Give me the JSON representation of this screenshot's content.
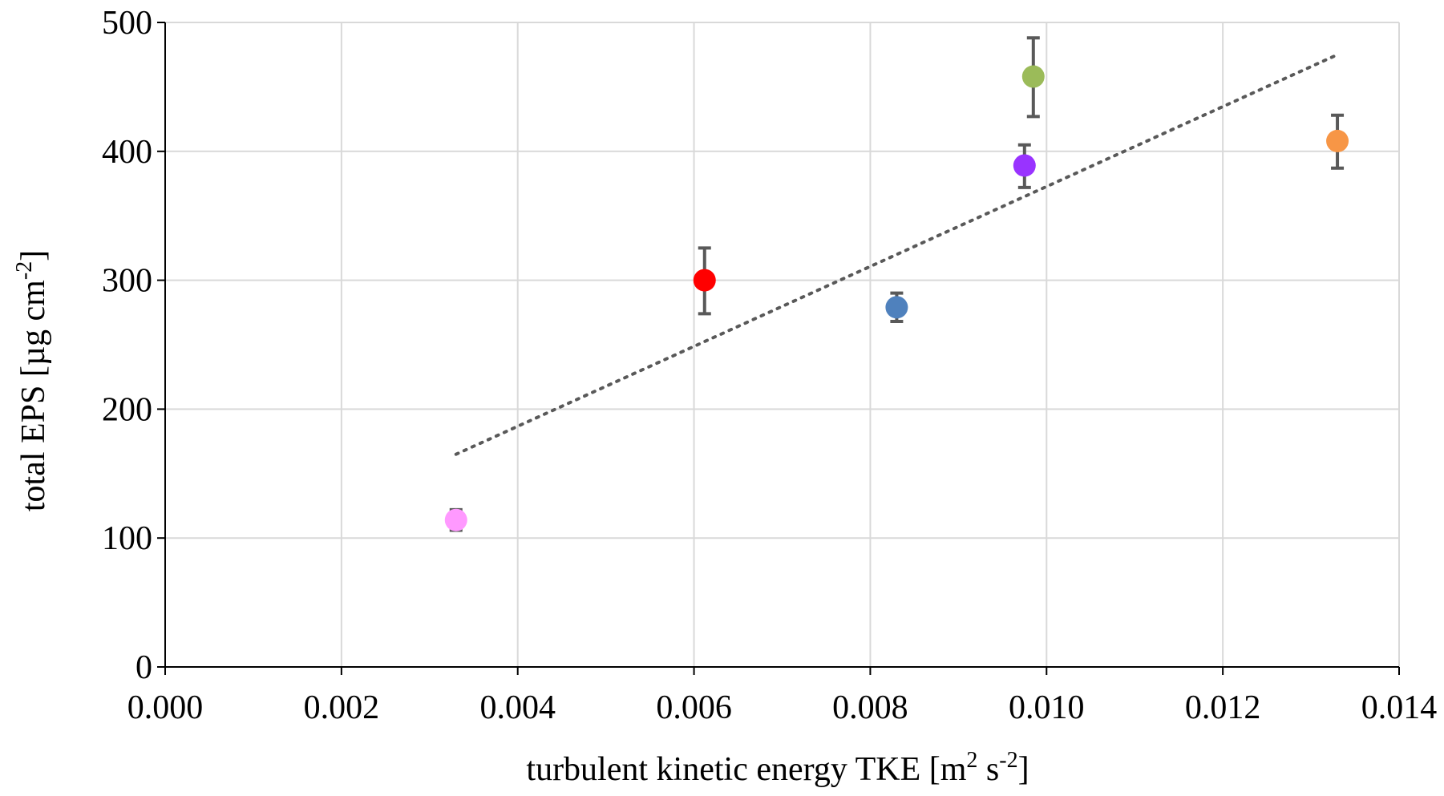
{
  "chart_data": {
    "type": "scatter",
    "title": "",
    "xlabel": "turbulent kinetic energy TKE [m² s⁻²]",
    "xlabel_parts": {
      "pre": "turbulent kinetic energy TKE [m",
      "sup1": "2",
      "mid": " s",
      "sup2": "-2",
      "post": "]"
    },
    "ylabel": "total EPS [µg cm⁻²]",
    "ylabel_parts": {
      "pre": "total EPS [µg cm",
      "sup": "-2",
      "post": "]"
    },
    "xlim": [
      0.0,
      0.014
    ],
    "ylim": [
      0,
      500
    ],
    "xticks": [
      0.0,
      0.002,
      0.004,
      0.006,
      0.008,
      0.01,
      0.012,
      0.014
    ],
    "xtick_labels": [
      "0.000",
      "0.002",
      "0.004",
      "0.006",
      "0.008",
      "0.010",
      "0.012",
      "0.014"
    ],
    "yticks": [
      0,
      100,
      200,
      300,
      400,
      500
    ],
    "ytick_labels": [
      "0",
      "100",
      "200",
      "300",
      "400",
      "500"
    ],
    "grid": true,
    "points": [
      {
        "x": 0.0033,
        "y": 114,
        "err_low": 8,
        "err_high": 8,
        "color": "#ff99ff"
      },
      {
        "x": 0.00612,
        "y": 300,
        "err_low": 26,
        "err_high": 25,
        "color": "#ff0000"
      },
      {
        "x": 0.0083,
        "y": 279,
        "err_low": 11,
        "err_high": 11,
        "color": "#4f81bd"
      },
      {
        "x": 0.00975,
        "y": 389,
        "err_low": 17,
        "err_high": 16,
        "color": "#9933ff"
      },
      {
        "x": 0.00985,
        "y": 458,
        "err_low": 31,
        "err_high": 30,
        "color": "#9bbb59"
      },
      {
        "x": 0.0133,
        "y": 408,
        "err_low": 21,
        "err_high": 20,
        "color": "#f79646"
      }
    ],
    "trendline": {
      "type": "linear",
      "style": "dotted",
      "color": "#595959",
      "x": [
        0.0033,
        0.0133
      ],
      "y": [
        165,
        475
      ]
    }
  }
}
